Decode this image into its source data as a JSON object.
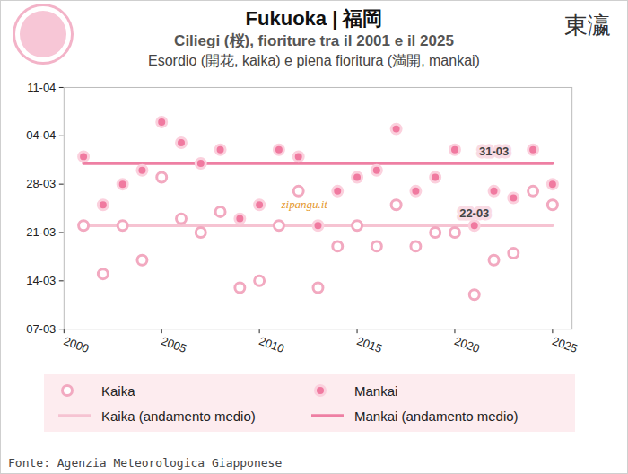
{
  "chart_data": {
    "type": "scatter",
    "title": "Fukuoka | 福岡",
    "subtitle": "Ciliegi (桜), fioriture tra il 2001 e il 2025",
    "subtitle2": "Esordio (開花, kaika) e piena fioritura (満開, mankai)",
    "logo": "東瀛",
    "source": "Fonte: Agenzia Meteorologica Giapponese",
    "x": [
      2001,
      2002,
      2003,
      2004,
      2005,
      2006,
      2007,
      2008,
      2009,
      2010,
      2011,
      2012,
      2013,
      2014,
      2015,
      2016,
      2017,
      2018,
      2019,
      2020,
      2021,
      2022,
      2023,
      2024,
      2025
    ],
    "xlim": [
      2000,
      2026
    ],
    "xticks": [
      2000,
      2005,
      2010,
      2015,
      2020,
      2025
    ],
    "ylim": [
      7,
      42
    ],
    "yticks": [
      {
        "value": 7,
        "label": "07-03"
      },
      {
        "value": 14,
        "label": "14-03"
      },
      {
        "value": 21,
        "label": "21-03"
      },
      {
        "value": 28,
        "label": "28-03"
      },
      {
        "value": 35,
        "label": "04-04"
      },
      {
        "value": 42,
        "label": "11-04"
      }
    ],
    "grid": false,
    "legend": "bottom",
    "series": [
      {
        "name": "Kaika",
        "type": "scatter",
        "marker": "circle-open",
        "color": "#f2a9c0",
        "values": [
          22,
          15,
          22,
          17,
          29,
          23,
          21,
          24,
          13,
          14,
          22,
          27,
          13,
          19,
          22,
          19,
          25,
          19,
          21,
          21,
          12,
          17,
          18,
          27,
          25
        ]
      },
      {
        "name": "Mankai",
        "type": "scatter",
        "marker": "circle",
        "color": "#f07aa0",
        "values": [
          32,
          25,
          28,
          30,
          37,
          34,
          31,
          33,
          23,
          25,
          33,
          32,
          22,
          27,
          29,
          30,
          36,
          27,
          29,
          33,
          22,
          27,
          26,
          33,
          28
        ]
      },
      {
        "name": "Kaika (andamento medio)",
        "type": "line",
        "line_style": "solid",
        "color": "#f6c3d2",
        "values": [
          22,
          22,
          22,
          22,
          22,
          22,
          22,
          22,
          22,
          22,
          22,
          22,
          22,
          22,
          22,
          22,
          22,
          22,
          22,
          22,
          22,
          22,
          22,
          22,
          22
        ]
      },
      {
        "name": "Mankai (andamento medio)",
        "type": "line",
        "line_style": "solid",
        "color": "#ee7fa3",
        "values": [
          31,
          31,
          31,
          31,
          31,
          31,
          31,
          31,
          31,
          31,
          31,
          31,
          31,
          31,
          31,
          31,
          31,
          31,
          31,
          31,
          31,
          31,
          31,
          31,
          31
        ]
      }
    ],
    "annotations": [
      {
        "text": "31-03",
        "x": 2022,
        "y": 31
      },
      {
        "text": "22-03",
        "x": 2021,
        "y": 22
      },
      {
        "text": "zipangu.it",
        "x": 2012.3,
        "y": 25
      }
    ]
  }
}
